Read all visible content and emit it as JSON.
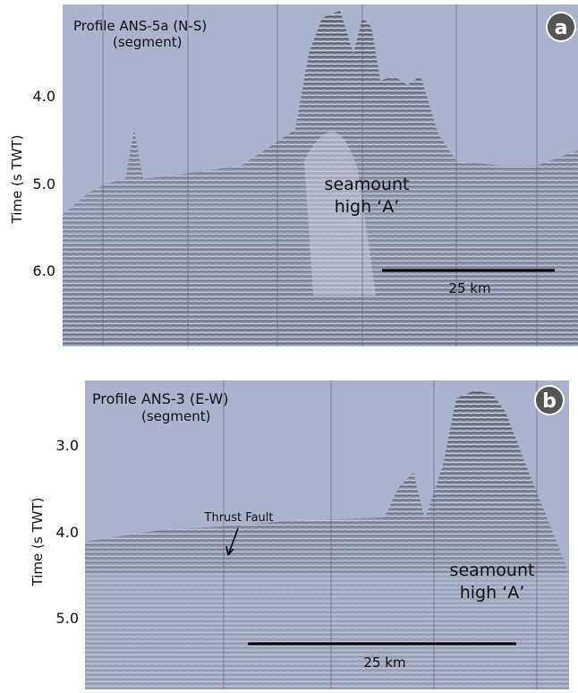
{
  "panels": [
    {
      "label": "a",
      "title": "Profile ANS-5a (N-S)",
      "subtitle": "(segment)",
      "y_axis_label": "Time (s TWT)",
      "y_ticks": [
        "4.0",
        "5.0",
        "6.0"
      ],
      "annotation": [
        "seamount",
        "high ‘A’"
      ],
      "scale_bar": "25 km"
    },
    {
      "label": "b",
      "title": "Profile ANS-3 (E-W)",
      "subtitle": "(segment)",
      "y_axis_label": "Time (s TWT)",
      "y_ticks": [
        "3.0",
        "4.0",
        "5.0"
      ],
      "annotation": [
        "seamount",
        "high ‘A’"
      ],
      "scale_bar": "25 km",
      "callout": "Thrust Fault"
    }
  ]
}
